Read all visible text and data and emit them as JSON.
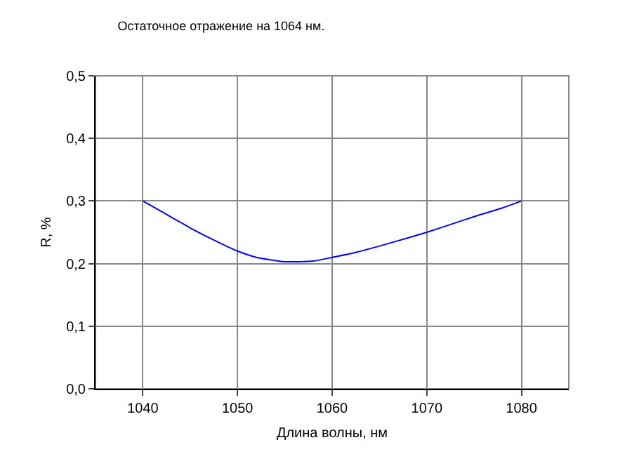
{
  "chart_data": {
    "type": "line",
    "title": "Остаточное отражение на 1064 нм.",
    "xlabel": "Длина волны, нм",
    "ylabel": "R, %",
    "x": [
      1040,
      1042,
      1045,
      1048,
      1050,
      1052,
      1055,
      1058,
      1060,
      1062,
      1065,
      1068,
      1070,
      1073,
      1075,
      1078,
      1080
    ],
    "series": [
      {
        "color": "#0000ff",
        "values": [
          0.3,
          0.283,
          0.257,
          0.234,
          0.22,
          0.21,
          0.203,
          0.204,
          0.21,
          0.216,
          0.228,
          0.241,
          0.25,
          0.265,
          0.275,
          0.289,
          0.3
        ]
      }
    ],
    "xlim": [
      1035,
      1085
    ],
    "xticks": [
      1040,
      1050,
      1060,
      1070,
      1080
    ],
    "ylim": [
      0,
      0.5
    ],
    "yticks": [
      {
        "value": 0,
        "label": "0,0"
      },
      {
        "value": 0.1,
        "label": "0,1"
      },
      {
        "value": 0.2,
        "label": "0,2"
      },
      {
        "value": 0.3,
        "label": "0,3"
      },
      {
        "value": 0.4,
        "label": "0,4"
      },
      {
        "value": 0.5,
        "label": "0,5"
      }
    ],
    "grid": true,
    "marker": "none",
    "line_style": "solid"
  }
}
